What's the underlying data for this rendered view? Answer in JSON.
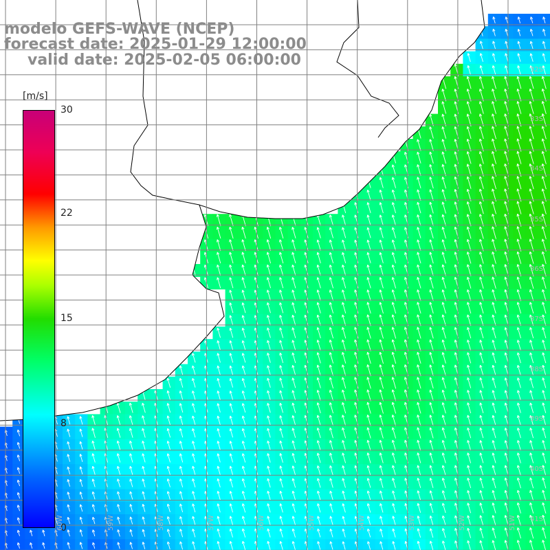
{
  "title": {
    "model": "modelo GEFS-WAVE (NCEP)",
    "forecast": "forecast date: 2025-01-29 12:00:00",
    "valid": "valid date: 2025-02-05 06:00:00"
  },
  "colorbar": {
    "unit": "[m/s]",
    "ticks": [
      "30",
      "22",
      "15",
      "8",
      "0"
    ],
    "range": [
      0,
      30
    ]
  },
  "lat_labels": [
    "32S",
    "33S",
    "34S",
    "35S",
    "36S",
    "37S",
    "38S",
    "39S",
    "40S",
    "41S"
  ],
  "lon_labels": [
    "60W",
    "59W",
    "58W",
    "57W",
    "56W",
    "55W",
    "54W",
    "53W",
    "52W",
    "51W"
  ],
  "colors": {
    "land": "#ffffff",
    "grid": "#808080",
    "coast": "#000000",
    "arrows": "#ffffff",
    "title": "#8c8c8c"
  },
  "wind_field": {
    "direction": "toward north-northwest",
    "calm_region": "southwest coast, 4-8 m/s",
    "strong_region": "open ocean east, 12-15 m/s"
  }
}
